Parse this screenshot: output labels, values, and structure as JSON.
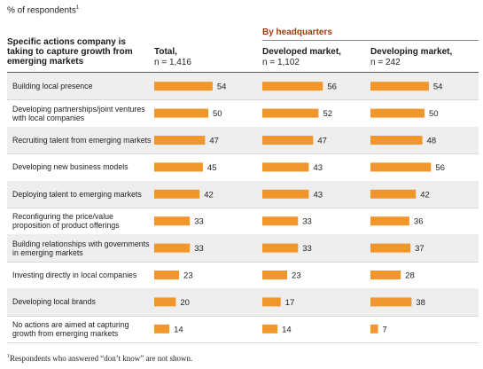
{
  "unit_note": "% of respondents",
  "unit_note_mark": "1",
  "group_header": "By headquarters",
  "row_header": "Specific actions company is taking to capture growth from emerging markets",
  "colors": {
    "bar": "#f0962b",
    "band": "#eeeeee",
    "group_header": "#9a3d0e"
  },
  "footnote_mark": "1",
  "footnote": "Respondents who answered “don’t know” are not shown.",
  "chart_data": {
    "type": "bar",
    "orientation": "horizontal",
    "grid": false,
    "categories": [
      "Building local presence",
      "Developing partnerships/joint ventures with local companies",
      "Recruiting talent from emerging markets",
      "Developing new business models",
      "Deploying talent to emerging markets",
      "Reconfiguring the price/value proposition of product offerings",
      "Building relationships with governments in emerging markets",
      "Investing directly in local companies",
      "Developing local brands",
      "No actions are aimed at capturing growth from emerging markets"
    ],
    "series": [
      {
        "name": "Total,",
        "n": "n = 1,416",
        "values": [
          54,
          50,
          47,
          45,
          42,
          33,
          33,
          23,
          20,
          14
        ]
      },
      {
        "name": "Developed market,",
        "n": "n = 1,102",
        "values": [
          56,
          52,
          47,
          43,
          43,
          33,
          33,
          23,
          17,
          14
        ]
      },
      {
        "name": "Developing market,",
        "n": "n = 242",
        "values": [
          54,
          50,
          48,
          56,
          42,
          36,
          37,
          28,
          38,
          7
        ]
      }
    ]
  }
}
